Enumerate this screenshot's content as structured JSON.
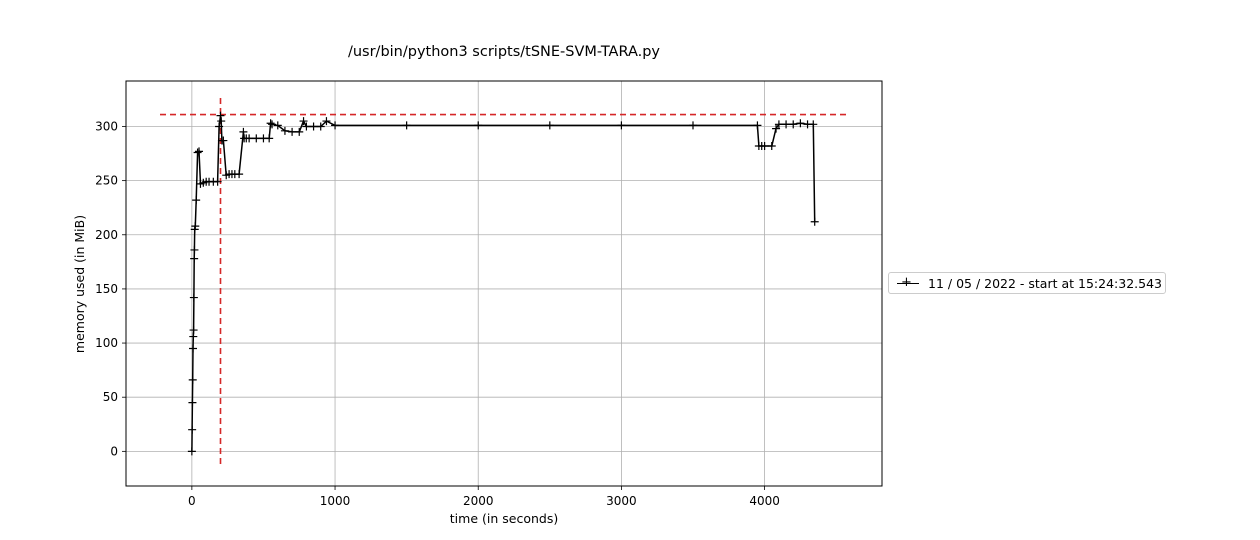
{
  "chart_data": {
    "type": "line",
    "title": "/usr/bin/python3 scripts/tSNE-SVM-TARA.py",
    "xlabel": "time (in seconds)",
    "ylabel": "memory used (in MiB)",
    "xlim": [
      -460,
      4820
    ],
    "ylim": [
      -32,
      342
    ],
    "xticks": [
      0,
      1000,
      2000,
      3000,
      4000
    ],
    "yticks": [
      0,
      50,
      100,
      150,
      200,
      250,
      300
    ],
    "grid": true,
    "legend_position": "right-outside",
    "series": [
      {
        "name": "11 / 05 / 2022 - start at 15:24:32.543",
        "color": "#000000",
        "marker": "+",
        "x": [
          0,
          2,
          4,
          6,
          8,
          10,
          12,
          14,
          16,
          18,
          20,
          24,
          30,
          40,
          50,
          60,
          80,
          100,
          120,
          150,
          180,
          190,
          200,
          205,
          210,
          220,
          240,
          260,
          280,
          300,
          330,
          360,
          365,
          380,
          400,
          450,
          500,
          540,
          550,
          560,
          600,
          650,
          700,
          750,
          780,
          800,
          850,
          900,
          940,
          1000,
          1500,
          2000,
          2500,
          3000,
          3500,
          3950,
          3960,
          3980,
          4000,
          4050,
          4080,
          4100,
          4150,
          4200,
          4250,
          4300,
          4340,
          4350
        ],
        "y": [
          0,
          20,
          45,
          66,
          95,
          106,
          112,
          142,
          178,
          186,
          205,
          208,
          232,
          276,
          277,
          247,
          248,
          249,
          249,
          249,
          249,
          300,
          310,
          305,
          287,
          287,
          255,
          256,
          256,
          256,
          256,
          295,
          289,
          289,
          289,
          289,
          289,
          289,
          303,
          302,
          301,
          296,
          295,
          295,
          305,
          300,
          300,
          300,
          305,
          301,
          301,
          301,
          301,
          301,
          301,
          301,
          282,
          282,
          282,
          282,
          298,
          302,
          302,
          302,
          303,
          302,
          302,
          212
        ]
      }
    ],
    "annotations": [
      {
        "type": "vline",
        "x": 200,
        "color": "#d62728",
        "style": "dashed"
      },
      {
        "type": "hline",
        "y": 311,
        "color": "#d62728",
        "style": "dashed"
      }
    ]
  }
}
